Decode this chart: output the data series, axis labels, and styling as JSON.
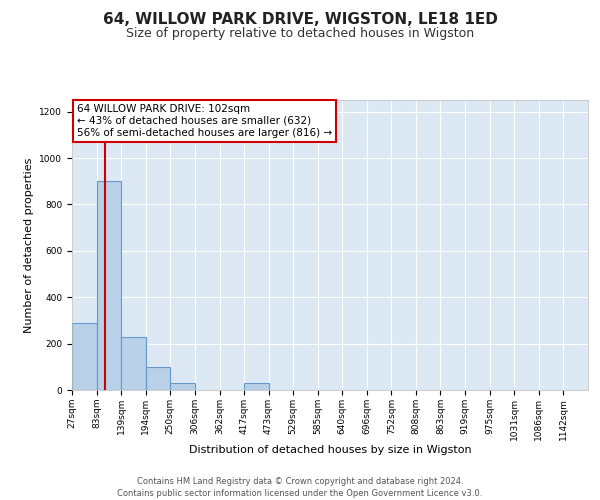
{
  "title": "64, WILLOW PARK DRIVE, WIGSTON, LE18 1ED",
  "subtitle": "Size of property relative to detached houses in Wigston",
  "xlabel": "Distribution of detached houses by size in Wigston",
  "ylabel": "Number of detached properties",
  "bar_edges": [
    27,
    83,
    139,
    194,
    250,
    306,
    362,
    417,
    473,
    529,
    585,
    640,
    696,
    752,
    808,
    863,
    919,
    975,
    1031,
    1086,
    1142,
    1198
  ],
  "bar_heights": [
    290,
    900,
    230,
    100,
    30,
    0,
    0,
    30,
    0,
    0,
    0,
    0,
    0,
    0,
    0,
    0,
    0,
    0,
    0,
    0,
    0
  ],
  "bar_color": "#b8d0e8",
  "bar_edgecolor": "#6699cc",
  "background_color": "#dce9f5",
  "fig_background": "#ffffff",
  "property_size": 102,
  "property_line_color": "#cc0000",
  "annotation_text": "64 WILLOW PARK DRIVE: 102sqm\n← 43% of detached houses are smaller (632)\n56% of semi-detached houses are larger (816) →",
  "annotation_box_edgecolor": "#cc0000",
  "xlim": [
    27,
    1198
  ],
  "ylim": [
    0,
    1250
  ],
  "yticks": [
    0,
    200,
    400,
    600,
    800,
    1000,
    1200
  ],
  "xtick_labels": [
    "27sqm",
    "83sqm",
    "139sqm",
    "194sqm",
    "250sqm",
    "306sqm",
    "362sqm",
    "417sqm",
    "473sqm",
    "529sqm",
    "585sqm",
    "640sqm",
    "696sqm",
    "752sqm",
    "808sqm",
    "863sqm",
    "919sqm",
    "975sqm",
    "1031sqm",
    "1086sqm",
    "1142sqm"
  ],
  "footer_line1": "Contains HM Land Registry data © Crown copyright and database right 2024.",
  "footer_line2": "Contains public sector information licensed under the Open Government Licence v3.0.",
  "grid_color": "#ffffff",
  "title_fontsize": 11,
  "subtitle_fontsize": 9,
  "axis_label_fontsize": 8,
  "tick_fontsize": 6.5,
  "annotation_fontsize": 7.5,
  "footer_fontsize": 6
}
